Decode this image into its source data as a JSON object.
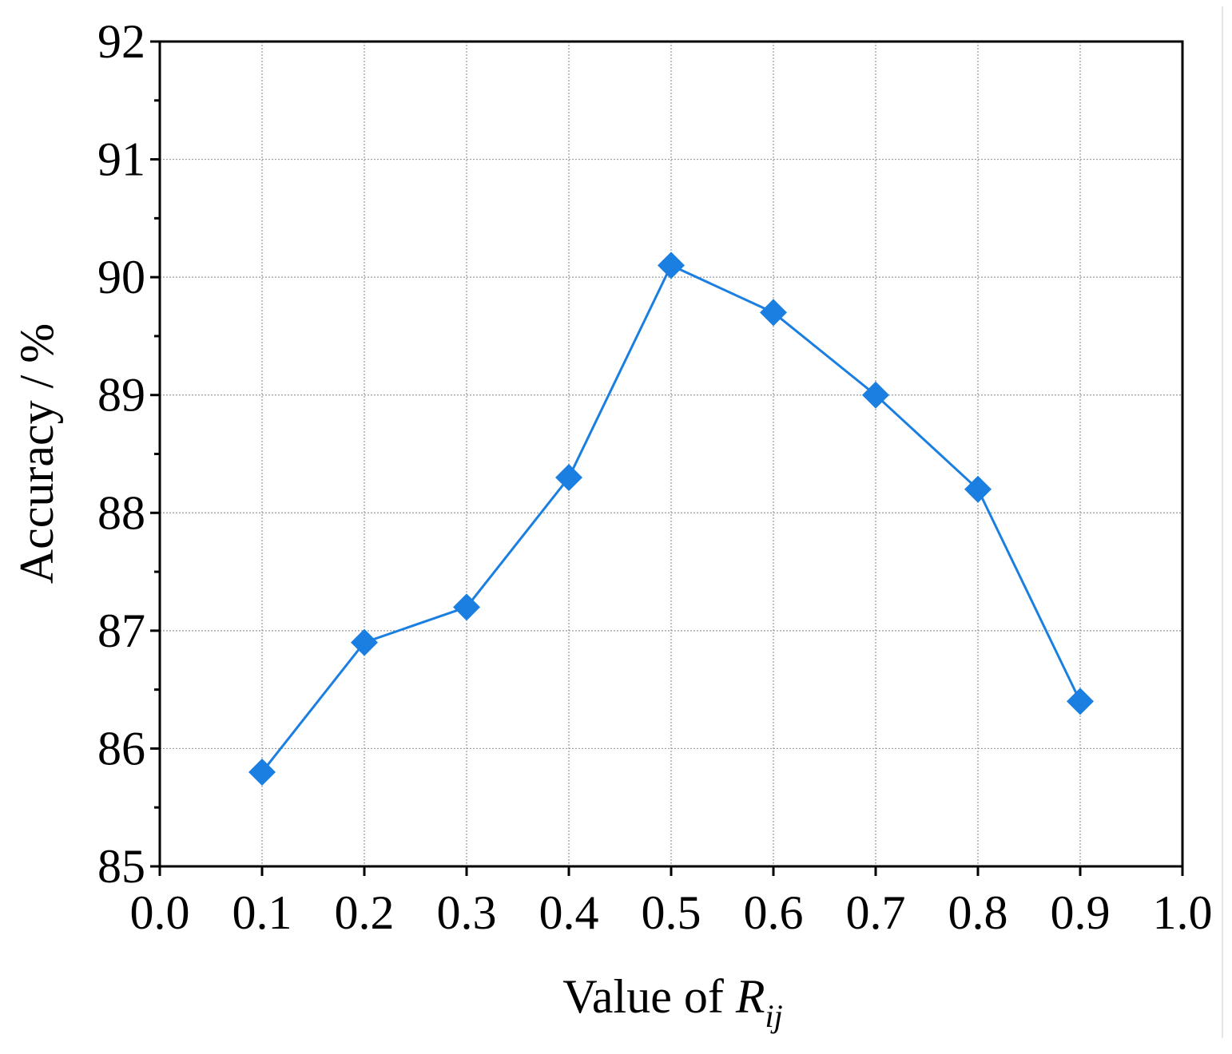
{
  "chart_data": {
    "type": "line",
    "xlabel_prefix": "Value of ",
    "xlabel_symbol": "R",
    "xlabel_subscript": "ij",
    "ylabel": "Accuracy / %",
    "xlim": [
      0.0,
      1.0
    ],
    "ylim": [
      85,
      92
    ],
    "x_ticks": [
      "0.0",
      "0.1",
      "0.2",
      "0.3",
      "0.4",
      "0.5",
      "0.6",
      "0.7",
      "0.8",
      "0.9",
      "1.0"
    ],
    "y_ticks": [
      "85",
      "86",
      "87",
      "88",
      "89",
      "90",
      "91",
      "92"
    ],
    "grid": true,
    "series": [
      {
        "color": "#1a7fe0",
        "marker": "diamond",
        "x": [
          0.1,
          0.2,
          0.3,
          0.4,
          0.5,
          0.6,
          0.7,
          0.8,
          0.9
        ],
        "y": [
          85.8,
          86.9,
          87.2,
          88.3,
          90.1,
          89.7,
          89.0,
          88.2,
          86.4
        ]
      }
    ]
  }
}
